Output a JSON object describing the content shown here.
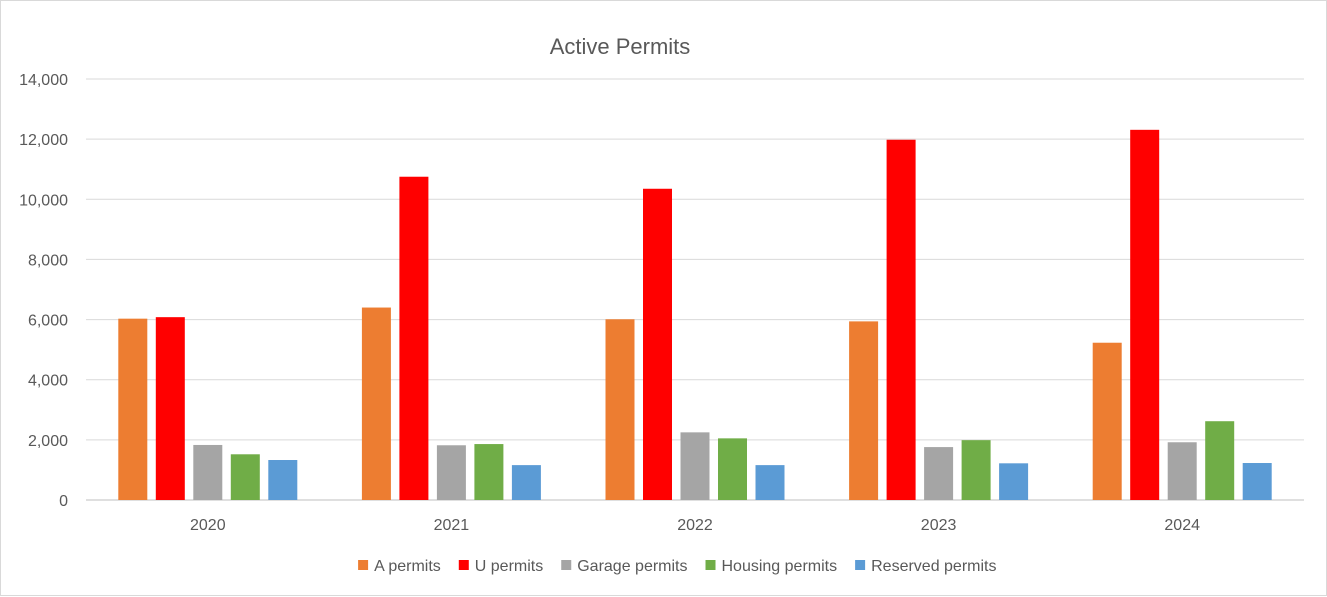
{
  "chart_data": {
    "type": "bar",
    "title": "Active Permits",
    "xlabel": "",
    "ylabel": "",
    "categories": [
      "2020",
      "2021",
      "2022",
      "2023",
      "2024"
    ],
    "ylim": [
      0,
      14000
    ],
    "yticks": [
      "0",
      "2,000",
      "4,000",
      "6,000",
      "8,000",
      "10,000",
      "12,000",
      "14,000"
    ],
    "ytick_values": [
      0,
      2000,
      4000,
      6000,
      8000,
      10000,
      12000,
      14000
    ],
    "grid": true,
    "legend_position": "bottom",
    "series": [
      {
        "name": "A permits",
        "color": "#ED7D31",
        "values": [
          6030,
          6400,
          6010,
          5940,
          5230
        ]
      },
      {
        "name": "U permits",
        "color": "#FF0000",
        "values": [
          6080,
          10750,
          10350,
          11980,
          12310
        ]
      },
      {
        "name": "Garage permits",
        "color": "#A5A5A5",
        "values": [
          1830,
          1820,
          2250,
          1760,
          1920
        ]
      },
      {
        "name": "Housing permits",
        "color": "#70AD47",
        "values": [
          1520,
          1860,
          2050,
          1990,
          2620
        ]
      },
      {
        "name": "Reserved permits",
        "color": "#5B9BD5",
        "values": [
          1330,
          1160,
          1160,
          1220,
          1230
        ]
      }
    ]
  }
}
